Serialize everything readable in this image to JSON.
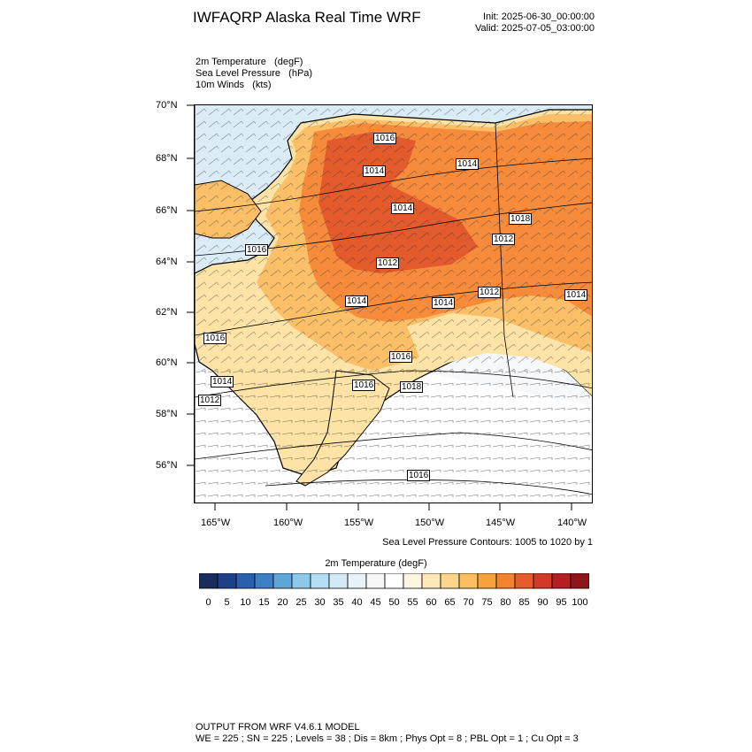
{
  "header": {
    "title": "IWFAQRP Alaska Real Time WRF",
    "init": "Init: 2025-06-30_00:00:00",
    "valid": "Valid: 2025-07-05_03:00:00"
  },
  "fields": [
    "2m Temperature   (degF)",
    "Sea Level Pressure   (hPa)",
    "10m Winds   (kts)"
  ],
  "map": {
    "lat_labels": [
      "70°N",
      "68°N",
      "66°N",
      "64°N",
      "62°N",
      "60°N",
      "58°N",
      "56°N"
    ],
    "lon_labels": [
      "165°W",
      "160°W",
      "155°W",
      "150°W",
      "145°W",
      "140°W"
    ],
    "pressure_labels": [
      "1016",
      "1014",
      "1014",
      "1012",
      "1016",
      "1014",
      "1012",
      "1014",
      "1012",
      "1014",
      "1016",
      "1016",
      "1016",
      "1014",
      "1018",
      "1012",
      "1016",
      "1014",
      "1018"
    ],
    "colors": {
      "ocean": "#dfeff8",
      "ocean_south": "#ffffff",
      "land_warm": "#f68b3c",
      "land_hot": "#e35a2c",
      "land_mild": "#fbbf68",
      "land_cool": "#fde3a6"
    }
  },
  "contour_note": "Sea Level Pressure Contours: 1005 to 1020 by 1",
  "colorbar": {
    "title": "2m Temperature  (degF)",
    "labels": [
      "0",
      "5",
      "10",
      "15",
      "20",
      "25",
      "30",
      "35",
      "40",
      "45",
      "50",
      "55",
      "60",
      "65",
      "70",
      "75",
      "80",
      "85",
      "90",
      "95",
      "100"
    ],
    "colors": [
      "#1a2b5e",
      "#1f3f8a",
      "#2a5fae",
      "#3b80c6",
      "#5ea5da",
      "#8cc8ec",
      "#b6ddf3",
      "#d3ebf7",
      "#e7f3f9",
      "#f4f8fb",
      "#ffffff",
      "#fef6e1",
      "#fde9b8",
      "#fcd68a",
      "#fbbf5f",
      "#f8a23e",
      "#f3842f",
      "#e65c2a",
      "#d13a27",
      "#b51f24",
      "#8e1519"
    ]
  },
  "footer": {
    "line1": "OUTPUT FROM WRF V4.6.1 MODEL",
    "line2": "WE = 225 ; SN = 225 ; Levels = 38 ; Dis = 8km ; Phys Opt = 8 ; PBL Opt = 1 ; Cu Opt = 3"
  }
}
